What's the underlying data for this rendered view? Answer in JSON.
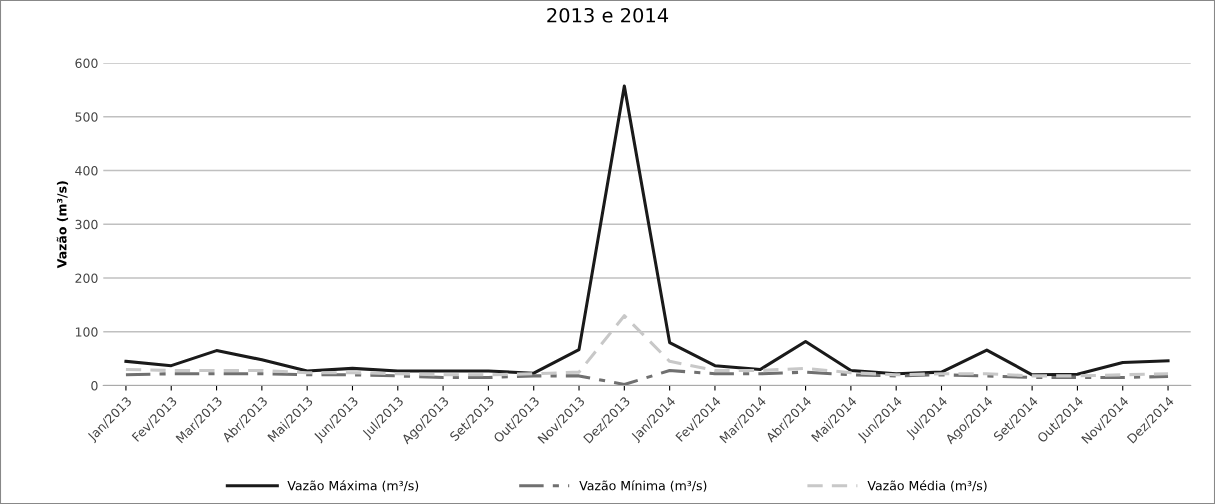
{
  "chart_data": {
    "type": "line",
    "title": "2013 e 2014",
    "ylabel": "Vazão (m³/s)",
    "categories": [
      "Jan/2013",
      "Fev/2013",
      "Mar/2013",
      "Abr/2013",
      "Mai/2013",
      "Jun/2013",
      "Jul/2013",
      "Ago/2013",
      "Set/2013",
      "Out/2013",
      "Nov/2013",
      "Dez/2013",
      "Jan/2014",
      "Fev/2014",
      "Mar/2014",
      "Abr/2014",
      "Mai/2014",
      "Jun/2014",
      "Jul/2014",
      "Ago/2014",
      "Set/2014",
      "Out/2014",
      "Nov/2014",
      "Dez/2014"
    ],
    "series": [
      {
        "name": "Vazão Máxima (m³/s)",
        "color": "#1a1a1a",
        "line_style": "solid",
        "values": [
          45,
          37,
          65,
          48,
          27,
          32,
          27,
          27,
          27,
          23,
          67,
          557,
          80,
          37,
          30,
          82,
          28,
          22,
          25,
          66,
          20,
          21,
          43,
          46
        ]
      },
      {
        "name": "Vazão Mínima (m³/s)",
        "color": "#707070",
        "line_style": "dashdot",
        "values": [
          20,
          22,
          22,
          22,
          20,
          20,
          18,
          15,
          15,
          18,
          18,
          2,
          28,
          22,
          22,
          25,
          20,
          18,
          20,
          18,
          15,
          15,
          15,
          17
        ]
      },
      {
        "name": "Vazão Média (m³/s)",
        "color": "#c8c8c8",
        "line_style": "dashed",
        "values": [
          30,
          28,
          28,
          28,
          24,
          24,
          22,
          20,
          20,
          22,
          25,
          130,
          45,
          28,
          28,
          32,
          24,
          20,
          22,
          22,
          18,
          18,
          20,
          22
        ]
      }
    ],
    "ylim": [
      0,
      600
    ],
    "yticks": [
      0,
      100,
      200,
      300,
      400,
      500,
      600
    ],
    "grid": "y",
    "legend": "bottom",
    "marker": "none"
  }
}
